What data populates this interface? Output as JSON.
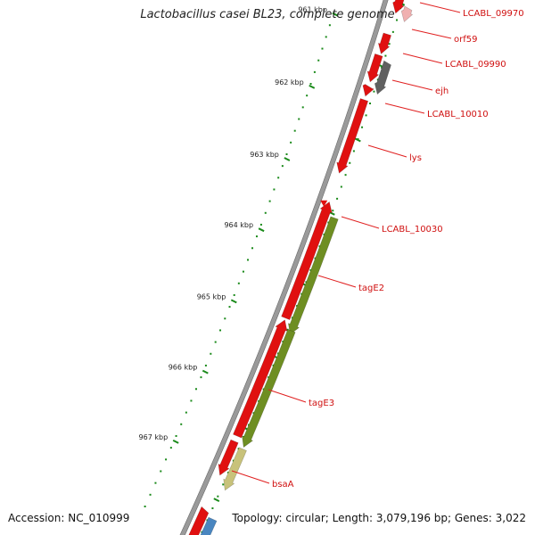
{
  "title": "Lactobacillus casei BL23, complete genome",
  "accession": "Accession: NC_010999",
  "topology": "Topology: circular; Length: 3,079,196 bp; Genes: 3,022",
  "colors": {
    "backbone": "#8a8a8a",
    "gene_forward": "#e01010",
    "gene_grey": "#606060",
    "gene_olive": "#6e8e22",
    "gene_khaki": "#c8c27a",
    "gene_blue": "#4a86c0",
    "label": "#d01010",
    "leader": "#e02020",
    "ticks": "#1a8a1a"
  },
  "icons": [
    "genome-backbone-arc",
    "gene-arrow",
    "kbp-tick-scale"
  ],
  "scale_labels": [
    "961 kbp",
    "962 kbp",
    "963 kbp",
    "964 kbp",
    "965 kbp",
    "966 kbp",
    "967 kbp"
  ],
  "genes": [
    {
      "label": "LCABL_09970",
      "color": "red"
    },
    {
      "label": "orf59",
      "color": "red"
    },
    {
      "label": "LCABL_09990",
      "color": "grey"
    },
    {
      "label": "ejh",
      "color": "red"
    },
    {
      "label": "LCABL_10010",
      "color": "red"
    },
    {
      "label": "lys",
      "color": "red"
    },
    {
      "label": "LCABL_10030",
      "color": "red"
    },
    {
      "label": "tagE2",
      "color": "olive"
    },
    {
      "label": "tagE3",
      "color": "olive"
    },
    {
      "label": "bsaA",
      "color": "khaki"
    }
  ]
}
